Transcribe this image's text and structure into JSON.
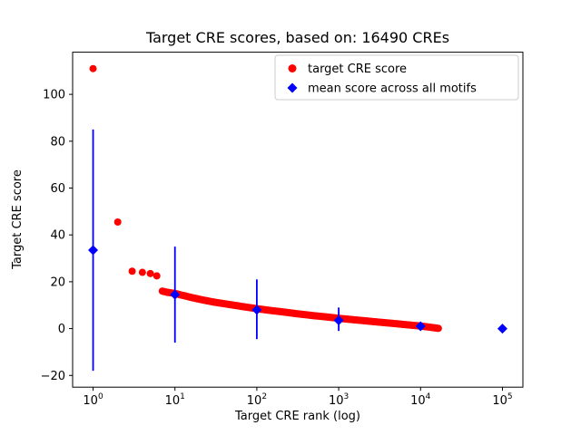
{
  "figure": {
    "title": "Target CRE scores, based on: 16490 CREs",
    "xlabel": "Target CRE rank (log)",
    "ylabel": "Target CRE score",
    "background": "#ffffff",
    "n_points": 16490
  },
  "chart_data": {
    "type": "scatter",
    "title": "Target CRE scores, based on: 16490 CREs",
    "xlabel": "Target CRE rank (log)",
    "ylabel": "Target CRE score",
    "x_scale": "log",
    "xlim_log10": [
      -0.25,
      5.25
    ],
    "ylim": [
      -25,
      118
    ],
    "x_tick_exponents": [
      0,
      1,
      2,
      3,
      4,
      5
    ],
    "x_tick_base": "10",
    "y_ticks": [
      -20,
      0,
      20,
      40,
      60,
      80,
      100
    ],
    "y_tick_labels": [
      "−20",
      "0",
      "20",
      "40",
      "60",
      "80",
      "100"
    ],
    "grid": false,
    "series": [
      {
        "name": "target CRE score",
        "marker": "circle",
        "color": "#ff0000",
        "n_points": 16490,
        "anchors": [
          [
            1,
            111
          ],
          [
            2,
            45.5
          ],
          [
            3,
            24.5
          ],
          [
            4,
            24
          ],
          [
            5,
            23.5
          ],
          [
            6,
            22.5
          ],
          [
            7,
            16
          ],
          [
            8,
            15.5
          ],
          [
            10,
            15
          ],
          [
            15,
            13.5
          ],
          [
            20,
            12.5
          ],
          [
            30,
            11.3
          ],
          [
            50,
            10.1
          ],
          [
            70,
            9.3
          ],
          [
            100,
            8.5
          ],
          [
            150,
            7.7
          ],
          [
            200,
            7.2
          ],
          [
            300,
            6.4
          ],
          [
            500,
            5.5
          ],
          [
            700,
            5.0
          ],
          [
            1000,
            4.4
          ],
          [
            1500,
            3.8
          ],
          [
            2000,
            3.4
          ],
          [
            3000,
            2.8
          ],
          [
            5000,
            2.1
          ],
          [
            7000,
            1.6
          ],
          [
            10000,
            1.1
          ],
          [
            13000,
            0.6
          ],
          [
            16490,
            0.1
          ]
        ]
      },
      {
        "name": "mean score across all motifs",
        "marker": "diamond",
        "color": "#0000ff",
        "points": [
          {
            "x": 1,
            "mean": 33.5,
            "lo": -18,
            "hi": 85
          },
          {
            "x": 10,
            "mean": 14.5,
            "lo": -6,
            "hi": 35
          },
          {
            "x": 100,
            "mean": 8,
            "lo": -4.5,
            "hi": 21
          },
          {
            "x": 1000,
            "mean": 3.5,
            "lo": -1,
            "hi": 9
          },
          {
            "x": 10000,
            "mean": 1,
            "lo": -0.8,
            "hi": 2.8
          },
          {
            "x": 100000,
            "mean": 0,
            "lo": 0,
            "hi": 0
          }
        ]
      }
    ],
    "legend": {
      "position": "upper right",
      "entries": [
        {
          "label": "target CRE score",
          "marker": "circle",
          "color": "#ff0000"
        },
        {
          "label": "mean score across all motifs",
          "marker": "diamond",
          "color": "#0000ff"
        }
      ]
    }
  }
}
